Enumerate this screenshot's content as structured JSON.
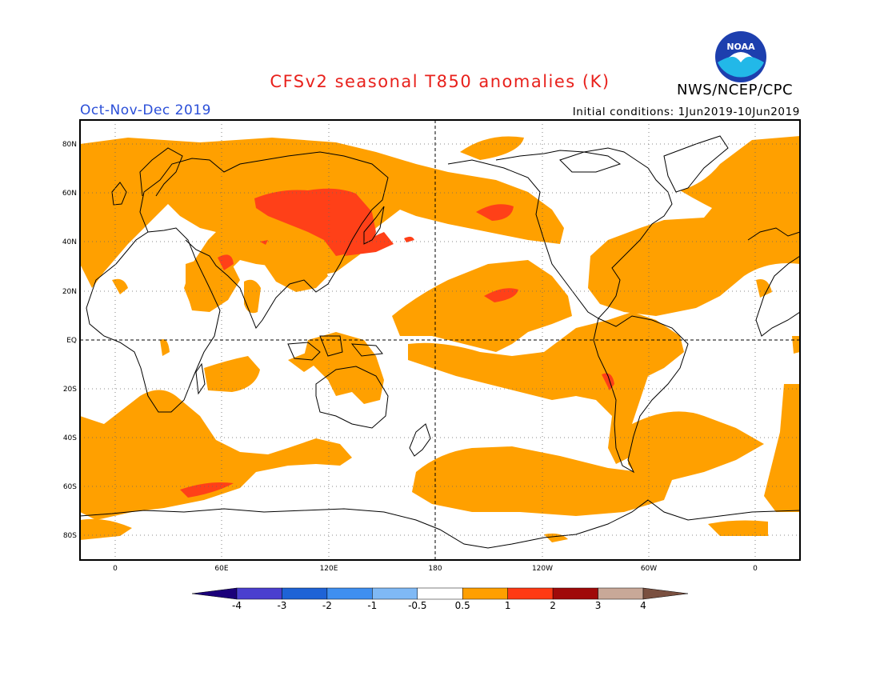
{
  "header": {
    "title": "CFSv2 seasonal T850 anomalies (K)",
    "org": "NWS/NCEP/CPC",
    "period": "Oct-Nov-Dec 2019",
    "initial_conditions": "Initial conditions: 1Jun2019-10Jun2019",
    "logo_text": "NOAA"
  },
  "map": {
    "projection": "cylindrical",
    "lat_ticks": [
      "80N",
      "60N",
      "40N",
      "20N",
      "EQ",
      "20S",
      "40S",
      "60S",
      "80S"
    ],
    "lon_ticks": [
      "0",
      "60E",
      "120E",
      "180",
      "120W",
      "60W",
      "0"
    ],
    "grid": true
  },
  "legend": {
    "labels": [
      "-4",
      "-3",
      "-2",
      "-1",
      "-0.5",
      "0.5",
      "1",
      "2",
      "3",
      "4"
    ],
    "colors": [
      "#1b007a",
      "#4a3fcf",
      "#1e63d6",
      "#3f8ff0",
      "#7fb9f5",
      "#ffffff",
      "#ff9f00",
      "#ff3a14",
      "#a00a0a",
      "#c8a898",
      "#7a5040"
    ]
  },
  "colors": {
    "warm_0_5_to_1": "#ffa000",
    "warm_1_to_2": "#ff4018",
    "title": "#e8211c",
    "period": "#2b4fd8"
  }
}
